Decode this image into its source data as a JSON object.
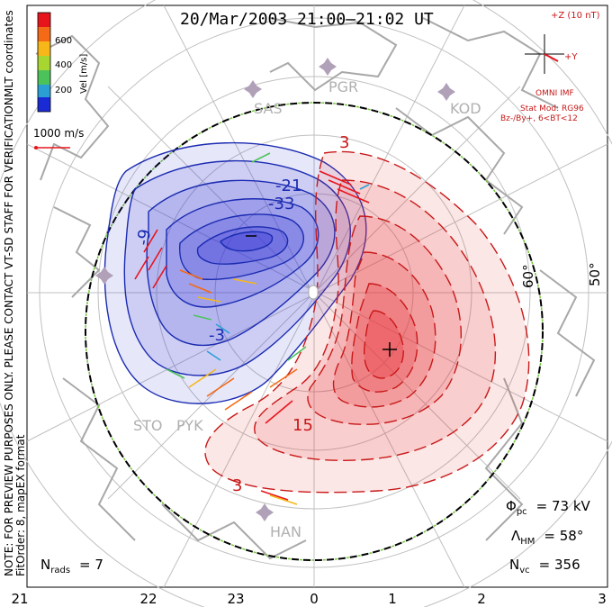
{
  "header": {
    "title": "20/Mar/2003 21:00–21:02 UT"
  },
  "colorbar": {
    "label": "Vel [m/s]",
    "ticks": [
      "600",
      "400",
      "200"
    ],
    "colors": [
      "#e8141c",
      "#f56a16",
      "#f7b718",
      "#a8d631",
      "#4cc35a",
      "#2a9fd4",
      "#1a2bd6"
    ]
  },
  "side_notes": {
    "coords": "MLT coordinates",
    "preview": "NOTE: FOR PREVIEW PURPOSES ONLY. PLEASE CONTACT VT-SD STAFF FOR VERIFICATION.",
    "fit": "FitOrder: 8, mapEX format"
  },
  "velocity_key": {
    "label": "1000 m/s"
  },
  "imf": {
    "scale": "+Z (10 nT)",
    "y_axis": "+Y",
    "source": "OMNI IMF",
    "model": "Stat Mod: RG96",
    "condition": "Bz-/By+, 6<BT<12"
  },
  "stations": [
    "PGR",
    "SAS",
    "KOD",
    "STO",
    "PYK",
    "HAN"
  ],
  "latitude_labels": [
    "60°",
    "50°"
  ],
  "contour_labels": {
    "negative": [
      "-21",
      "-33",
      "-9",
      "-3"
    ],
    "positive": [
      "3",
      "15",
      "3"
    ]
  },
  "stats": {
    "phi_symbol": "Φ",
    "phi_sub": "pc",
    "phi_value": "= 73 kV",
    "lambda_symbol": "Λ",
    "lambda_sub": "HM",
    "lambda_value": "= 58°",
    "nvc_symbol": "N",
    "nvc_sub": "vc",
    "nvc_value": "= 356",
    "nrads_symbol": "N",
    "nrads_sub": "rads",
    "nrads_value": "= 7"
  },
  "mlt_axis": [
    "21",
    "22",
    "23",
    "0",
    "1",
    "2",
    "3"
  ],
  "map_colors": {
    "negative_fill": "#3a3ad8",
    "positive_fill": "#e8383c",
    "negative_line": "#1a2bb0",
    "positive_line": "#c81818",
    "grid": "#bbbbbb",
    "coast": "#a8a8a8"
  }
}
